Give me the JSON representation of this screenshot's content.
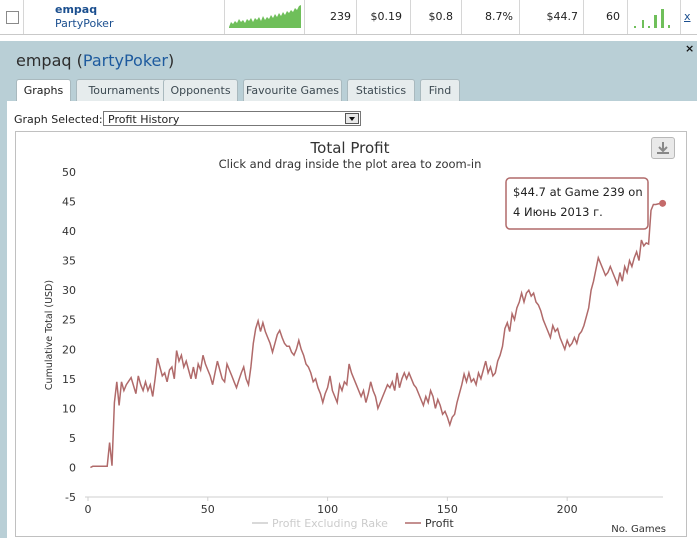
{
  "player_row": {
    "name": "empaq",
    "network": "PartyPoker",
    "hands": "239",
    "stat_1": "$0.19",
    "stat_2": "$0.8",
    "stat_3": "8.7%",
    "profit": "$44.7",
    "stat_5": "60",
    "action_link": "x"
  },
  "panel": {
    "name": "empaq",
    "network": "PartyPoker",
    "paren_open": "(",
    "paren_close": ")",
    "close": "×",
    "tabs": [
      "Graphs",
      "Tournaments",
      "Opponents",
      "Favourite Games",
      "Statistics",
      "Find"
    ],
    "active_tab": "Graphs",
    "graph_selected_label": "Graph Selected:",
    "graph_selected_value": "Profit History"
  },
  "colors": {
    "profit_line": "#b06a6a",
    "rake_line": "#cccccc",
    "sparkline": "#6fbf5a",
    "panel_bg": "#b9cfd6",
    "link": "#1d5a9e"
  },
  "icons": {
    "download": "download-icon",
    "dropdown": "chevron-down-icon",
    "close": "close-icon"
  },
  "tooltip": {
    "line1": "$44.7 at Game 239 on",
    "line2": "4 Июнь 2013 г."
  },
  "chart_data": {
    "type": "line",
    "title": "Total Profit",
    "subtitle": "Click and drag inside the plot area to zoom-in",
    "ylabel": "Cumulative Total (USD)",
    "xlabel": "No. Games",
    "xlim": [
      0,
      240
    ],
    "ylim": [
      -5,
      50
    ],
    "x_ticks": [
      0,
      50,
      100,
      150,
      200
    ],
    "y_ticks": [
      -5,
      0,
      5,
      10,
      15,
      20,
      25,
      30,
      35,
      40,
      45,
      50
    ],
    "grid": false,
    "legend_position": "bottom-center",
    "series": [
      {
        "name": "Profit Excluding Rake",
        "values": []
      },
      {
        "name": "Profit",
        "points": [
          [
            1,
            0
          ],
          [
            2,
            0.2
          ],
          [
            4,
            0.2
          ],
          [
            6,
            0.2
          ],
          [
            8,
            0.2
          ],
          [
            9,
            4.2
          ],
          [
            10,
            0.3
          ],
          [
            11,
            11
          ],
          [
            12,
            14.5
          ],
          [
            13,
            10.5
          ],
          [
            14,
            14.5
          ],
          [
            15,
            13
          ],
          [
            16,
            14
          ],
          [
            18,
            15.2
          ],
          [
            20,
            12.5
          ],
          [
            21,
            15.5
          ],
          [
            22,
            14
          ],
          [
            23,
            13
          ],
          [
            24,
            14.5
          ],
          [
            25,
            13
          ],
          [
            26,
            14
          ],
          [
            27,
            12
          ],
          [
            28,
            15
          ],
          [
            29,
            18.5
          ],
          [
            30,
            17
          ],
          [
            31,
            15.5
          ],
          [
            32,
            16
          ],
          [
            33,
            14.5
          ],
          [
            34,
            16.5
          ],
          [
            35,
            17
          ],
          [
            36,
            15
          ],
          [
            37,
            19.8
          ],
          [
            38,
            18
          ],
          [
            39,
            19
          ],
          [
            40,
            17
          ],
          [
            41,
            18
          ],
          [
            42,
            16.5
          ],
          [
            43,
            15
          ],
          [
            44,
            17
          ],
          [
            45,
            15
          ],
          [
            46,
            17.5
          ],
          [
            47,
            16.5
          ],
          [
            48,
            19
          ],
          [
            49,
            17.5
          ],
          [
            50,
            16.5
          ],
          [
            51,
            15.5
          ],
          [
            52,
            14
          ],
          [
            53,
            16
          ],
          [
            54,
            18
          ],
          [
            55,
            16.5
          ],
          [
            56,
            15
          ],
          [
            57,
            14.5
          ],
          [
            58,
            17.5
          ],
          [
            59,
            16.5
          ],
          [
            60,
            15.5
          ],
          [
            61,
            14.5
          ],
          [
            62,
            13.5
          ],
          [
            63,
            14.8
          ],
          [
            64,
            16
          ],
          [
            65,
            17
          ],
          [
            66,
            15
          ],
          [
            67,
            14
          ],
          [
            68,
            17
          ],
          [
            69,
            21
          ],
          [
            70,
            23.5
          ],
          [
            71,
            24.8
          ],
          [
            72,
            23
          ],
          [
            73,
            24.5
          ],
          [
            74,
            23
          ],
          [
            75,
            22
          ],
          [
            76,
            21
          ],
          [
            77,
            19.5
          ],
          [
            78,
            21
          ],
          [
            79,
            22.5
          ],
          [
            80,
            23.2
          ],
          [
            81,
            22
          ],
          [
            82,
            21
          ],
          [
            83,
            20.5
          ],
          [
            84,
            20.5
          ],
          [
            85,
            19.5
          ],
          [
            86,
            19
          ],
          [
            87,
            20
          ],
          [
            88,
            21.5
          ],
          [
            89,
            20
          ],
          [
            90,
            19
          ],
          [
            91,
            17.5
          ],
          [
            92,
            17
          ],
          [
            93,
            16
          ],
          [
            94,
            14.5
          ],
          [
            95,
            15
          ],
          [
            96,
            13.5
          ],
          [
            97,
            12.5
          ],
          [
            98,
            11
          ],
          [
            99,
            12.5
          ],
          [
            100,
            13.5
          ],
          [
            101,
            15.5
          ],
          [
            102,
            13
          ],
          [
            103,
            12
          ],
          [
            104,
            11
          ],
          [
            105,
            14
          ],
          [
            106,
            13
          ],
          [
            107,
            14.5
          ],
          [
            108,
            14
          ],
          [
            109,
            17.5
          ],
          [
            110,
            16
          ],
          [
            111,
            15
          ],
          [
            112,
            14
          ],
          [
            113,
            13
          ],
          [
            114,
            12
          ],
          [
            115,
            13
          ],
          [
            116,
            11
          ],
          [
            117,
            12.5
          ],
          [
            118,
            14.5
          ],
          [
            119,
            13
          ],
          [
            120,
            12
          ],
          [
            121,
            10
          ],
          [
            122,
            11
          ],
          [
            123,
            12
          ],
          [
            124,
            13
          ],
          [
            125,
            14
          ],
          [
            126,
            13.5
          ],
          [
            127,
            14.5
          ],
          [
            128,
            13
          ],
          [
            129,
            16
          ],
          [
            130,
            13.5
          ],
          [
            131,
            15
          ],
          [
            132,
            16
          ],
          [
            133,
            15
          ],
          [
            134,
            16
          ],
          [
            135,
            15
          ],
          [
            136,
            14
          ],
          [
            137,
            13.5
          ],
          [
            138,
            12.5
          ],
          [
            139,
            11.5
          ],
          [
            140,
            10.5
          ],
          [
            141,
            12
          ],
          [
            142,
            11
          ],
          [
            143,
            13
          ],
          [
            144,
            12
          ],
          [
            145,
            10
          ],
          [
            146,
            11.5
          ],
          [
            147,
            10.5
          ],
          [
            148,
            9
          ],
          [
            149,
            9.5
          ],
          [
            150,
            8.5
          ],
          [
            151,
            7.2
          ],
          [
            152,
            8.5
          ],
          [
            153,
            9
          ],
          [
            154,
            11
          ],
          [
            155,
            12.5
          ],
          [
            156,
            14
          ],
          [
            157,
            15.8
          ],
          [
            158,
            14.5
          ],
          [
            159,
            16
          ],
          [
            160,
            14.5
          ],
          [
            161,
            15
          ],
          [
            162,
            14
          ],
          [
            163,
            16
          ],
          [
            164,
            15
          ],
          [
            165,
            16.5
          ],
          [
            166,
            18
          ],
          [
            167,
            16
          ],
          [
            168,
            17
          ],
          [
            169,
            15.5
          ],
          [
            170,
            16
          ],
          [
            171,
            18
          ],
          [
            172,
            19
          ],
          [
            173,
            20.5
          ],
          [
            174,
            23.5
          ],
          [
            175,
            24.5
          ],
          [
            176,
            23
          ],
          [
            177,
            26
          ],
          [
            178,
            25
          ],
          [
            179,
            27
          ],
          [
            180,
            28
          ],
          [
            181,
            29.5
          ],
          [
            182,
            28
          ],
          [
            183,
            29.5
          ],
          [
            184,
            30
          ],
          [
            185,
            29
          ],
          [
            186,
            29.5
          ],
          [
            187,
            28
          ],
          [
            188,
            27.5
          ],
          [
            189,
            26.5
          ],
          [
            190,
            25
          ],
          [
            191,
            24
          ],
          [
            192,
            23
          ],
          [
            193,
            22
          ],
          [
            194,
            24
          ],
          [
            195,
            23
          ],
          [
            196,
            23.5
          ],
          [
            197,
            22
          ],
          [
            198,
            21
          ],
          [
            199,
            20
          ],
          [
            200,
            21.5
          ],
          [
            201,
            20.5
          ],
          [
            202,
            21
          ],
          [
            203,
            22
          ],
          [
            204,
            21
          ],
          [
            205,
            22.5
          ],
          [
            206,
            23
          ],
          [
            207,
            24
          ],
          [
            208,
            25.5
          ],
          [
            209,
            27
          ],
          [
            210,
            30
          ],
          [
            211,
            31.5
          ],
          [
            212,
            33.5
          ],
          [
            213,
            35.5
          ],
          [
            214,
            34.5
          ],
          [
            215,
            33.5
          ],
          [
            216,
            32.5
          ],
          [
            217,
            33
          ],
          [
            218,
            34
          ],
          [
            219,
            33
          ],
          [
            220,
            32
          ],
          [
            221,
            31
          ],
          [
            222,
            33
          ],
          [
            223,
            31.5
          ],
          [
            224,
            34
          ],
          [
            225,
            33
          ],
          [
            226,
            35
          ],
          [
            227,
            34
          ],
          [
            228,
            35.5
          ],
          [
            229,
            36.5
          ],
          [
            230,
            35
          ],
          [
            231,
            38.5
          ],
          [
            232,
            37.5
          ],
          [
            233,
            38
          ],
          [
            234,
            37.8
          ],
          [
            235,
            43.5
          ],
          [
            236,
            44.5
          ],
          [
            237,
            44.5
          ],
          [
            238,
            44.6
          ],
          [
            239,
            44.7
          ]
        ]
      }
    ]
  }
}
